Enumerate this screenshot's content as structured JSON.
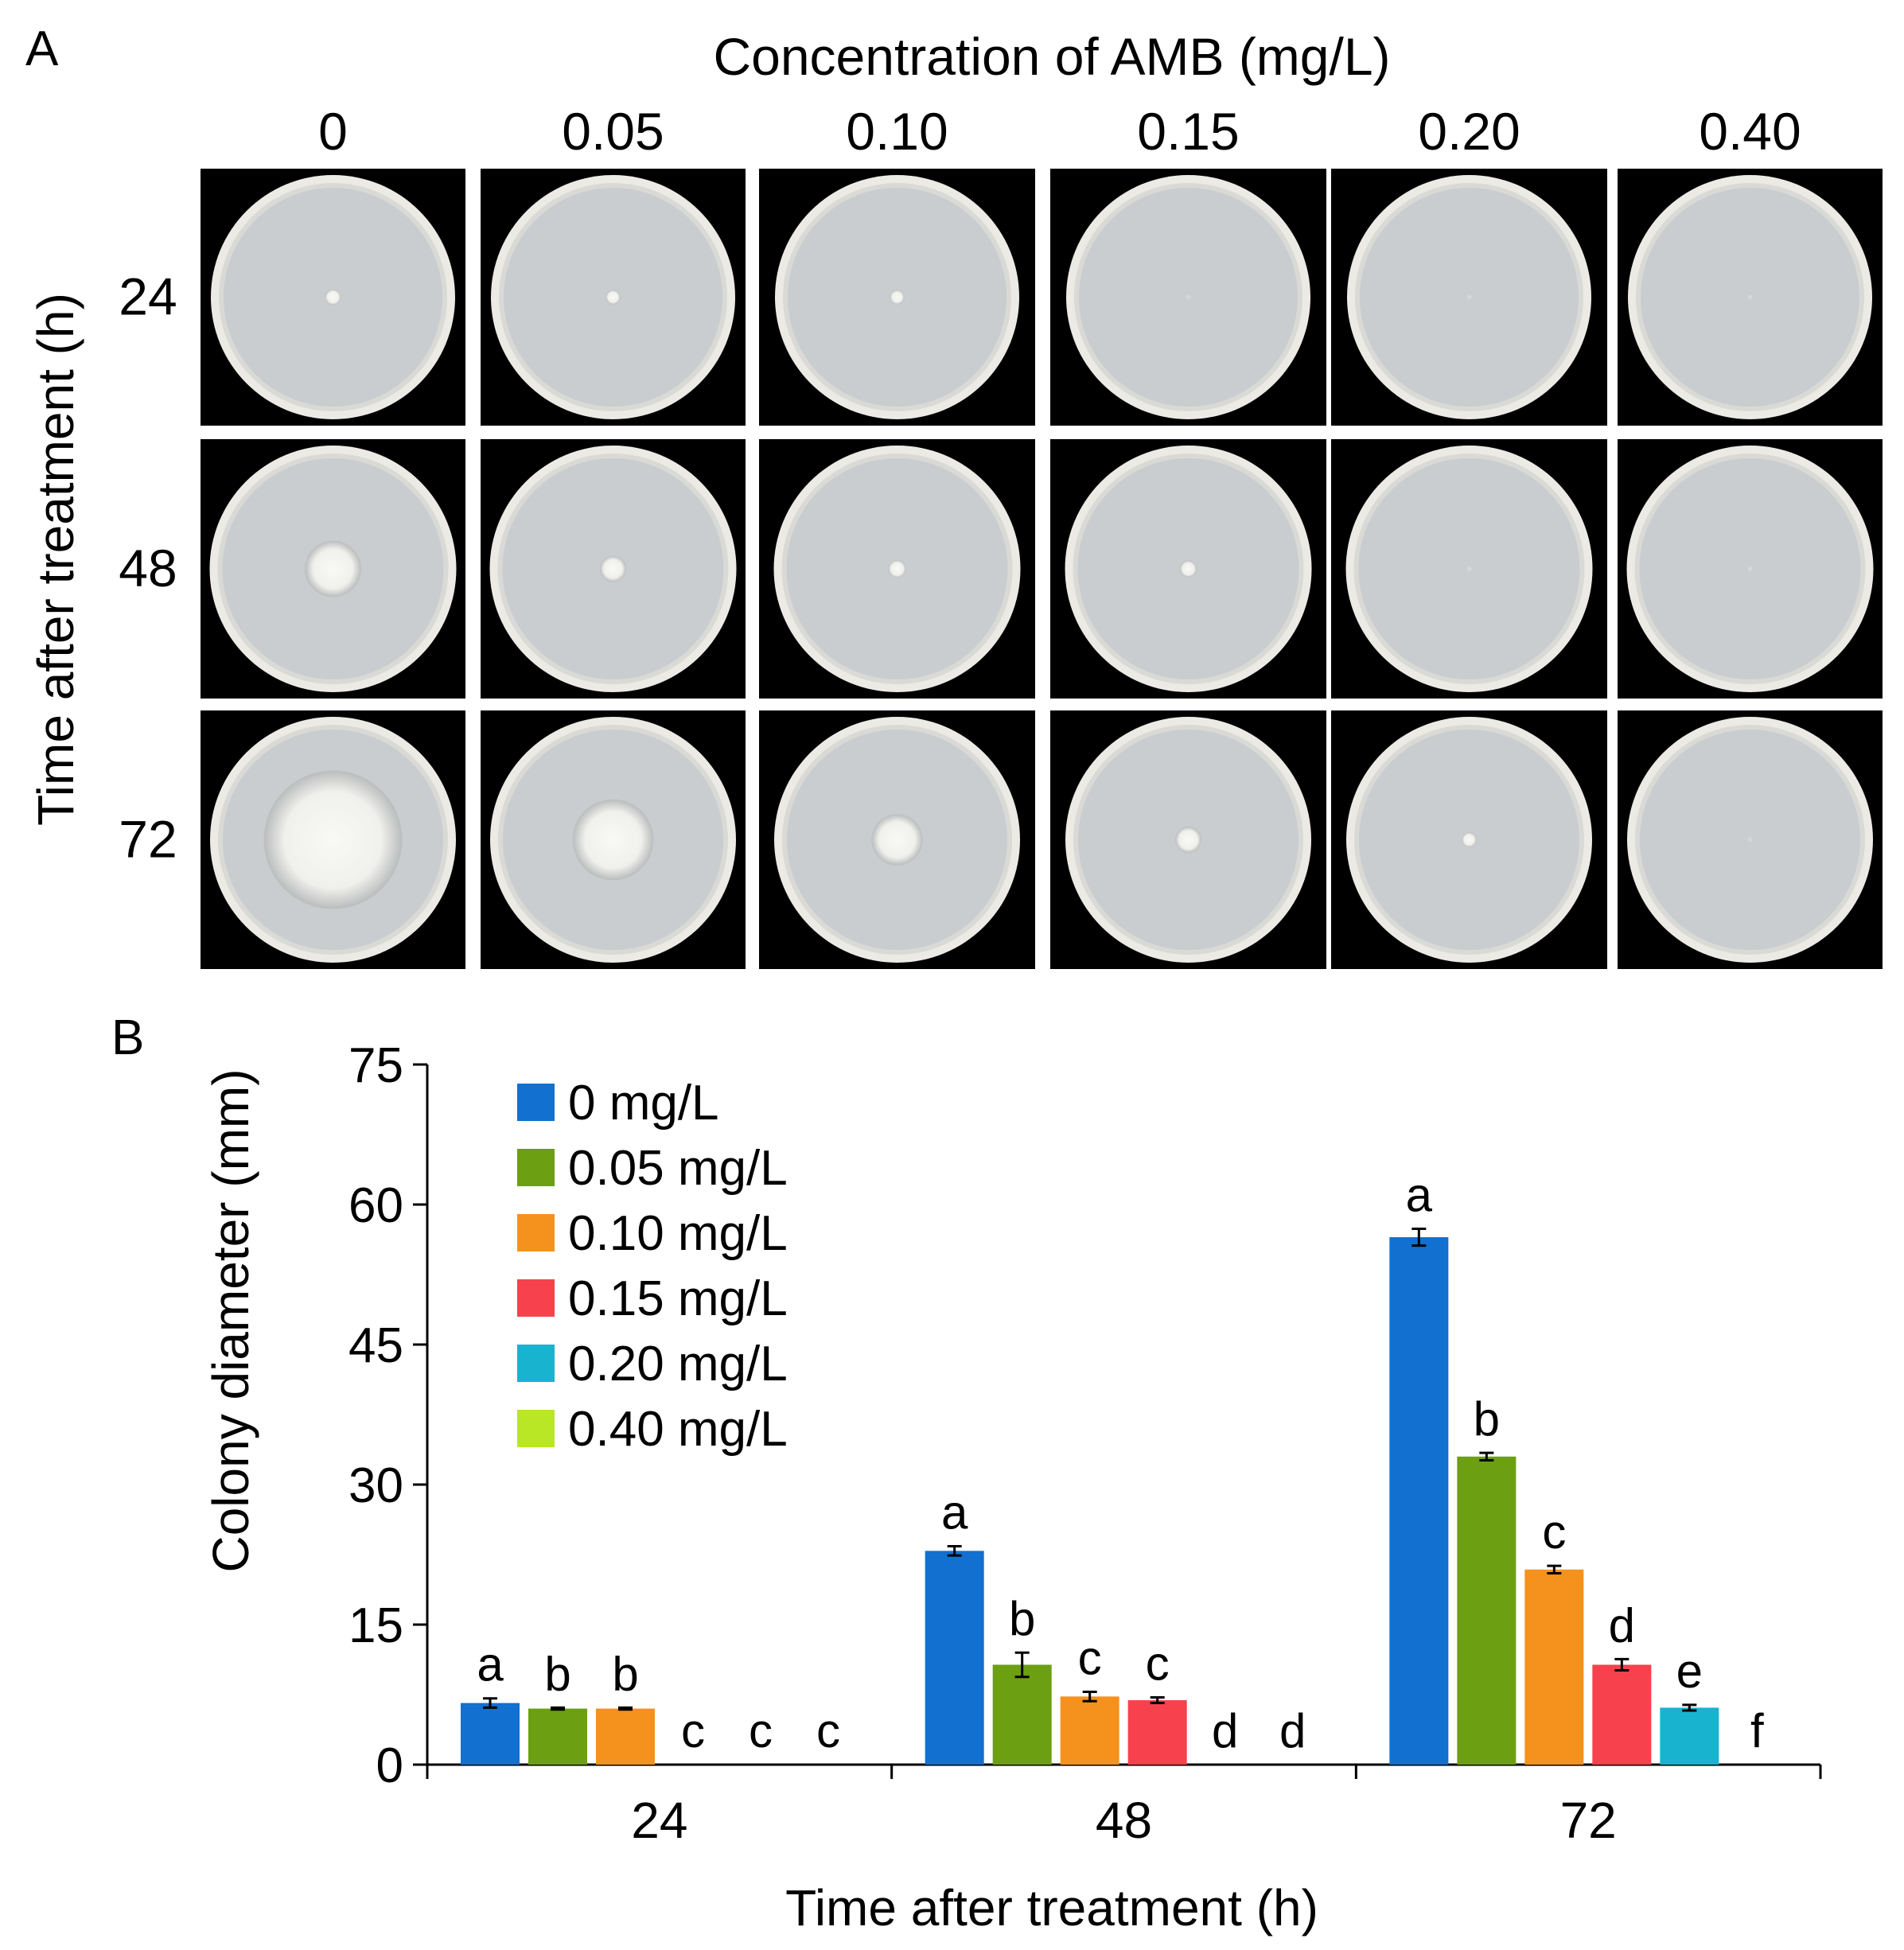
{
  "panel_a": {
    "label": "A",
    "title": "Concentration of AMB (mg/L)",
    "columns": [
      "0",
      "0.05",
      "0.10",
      "0.15",
      "0.20",
      "0.40"
    ],
    "row_axis_label": "Time after treatment (h)",
    "rows": [
      "24",
      "48",
      "72"
    ],
    "colony_diameters_mm": [
      [
        6.6,
        6.0,
        6.0,
        0,
        0,
        0
      ],
      [
        22.9,
        10.7,
        7.3,
        6.9,
        0,
        0
      ],
      [
        56.5,
        33.0,
        20.9,
        10.7,
        6.1,
        0
      ]
    ],
    "colors": {
      "photo_background": "#000000",
      "agar": "#c9cdcf",
      "plate_rim": "#eceae4",
      "colony": "#f2f2ee"
    }
  },
  "chart_data": {
    "label": "B",
    "type": "bar",
    "categories": [
      "24",
      "48",
      "72"
    ],
    "xlabel": "Time after treatment (h)",
    "ylabel": "Colony diameter (mm)",
    "ylim": [
      0,
      75
    ],
    "yticks": [
      "0",
      "15",
      "30",
      "45",
      "60",
      "75"
    ],
    "grid": false,
    "legend_position": "top-left",
    "series": [
      {
        "name": "0 mg/L",
        "color": "#1170d0",
        "values": [
          6.6,
          22.9,
          56.5
        ],
        "errors": [
          0.5,
          0.5,
          0.9
        ],
        "letters": [
          "a",
          "a",
          "a"
        ]
      },
      {
        "name": "0.05 mg/L",
        "color": "#6c9f12",
        "values": [
          6.0,
          10.7,
          33.0
        ],
        "errors": [
          0.1,
          1.3,
          0.4
        ],
        "letters": [
          "b",
          "b",
          "b"
        ]
      },
      {
        "name": "0.10 mg/L",
        "color": "#f5921d",
        "values": [
          6.0,
          7.3,
          20.9
        ],
        "errors": [
          0.1,
          0.5,
          0.4
        ],
        "letters": [
          "b",
          "c",
          "c"
        ]
      },
      {
        "name": "0.15 mg/L",
        "color": "#f7414c",
        "values": [
          0,
          6.9,
          10.7
        ],
        "errors": [
          0,
          0.3,
          0.6
        ],
        "letters": [
          "c",
          "c",
          "d"
        ]
      },
      {
        "name": "0.20 mg/L",
        "color": "#18b3cf",
        "values": [
          0,
          0,
          6.1
        ],
        "errors": [
          0,
          0,
          0.3
        ],
        "letters": [
          "c",
          "d",
          "e"
        ]
      },
      {
        "name": "0.40 mg/L",
        "color": "#b9e625",
        "values": [
          0,
          0,
          0
        ],
        "errors": [
          0,
          0,
          0
        ],
        "letters": [
          "c",
          "d",
          "f"
        ]
      }
    ]
  }
}
